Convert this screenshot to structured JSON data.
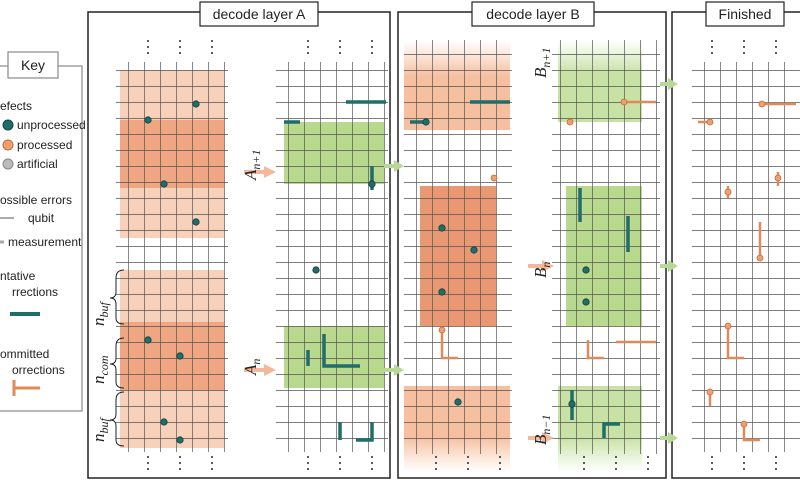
{
  "key": {
    "title": "Key",
    "defects": "efects",
    "unprocessed": "unprocessed",
    "processed": "processed",
    "artificial": "artificial",
    "errors": "ossible errors",
    "qubit": "qubit",
    "measurement": "measurement",
    "tentative": [
      "ntative",
      "rrections"
    ],
    "committed": [
      "ommitted",
      "orrections"
    ]
  },
  "panels": [
    "decode layer A",
    "decode layer B",
    "Finished"
  ],
  "labels": [
    {
      "base": "A",
      "sub": "n+1"
    },
    {
      "base": "A",
      "sub": "n"
    },
    {
      "base": "B",
      "sub": "n+1"
    },
    {
      "base": "B",
      "sub": "n"
    },
    {
      "base": "B",
      "sub": "n−1"
    },
    {
      "base": "n",
      "sub": "buf"
    },
    {
      "base": "n",
      "sub": "com"
    },
    {
      "base": "n",
      "sub": "buf"
    }
  ]
}
